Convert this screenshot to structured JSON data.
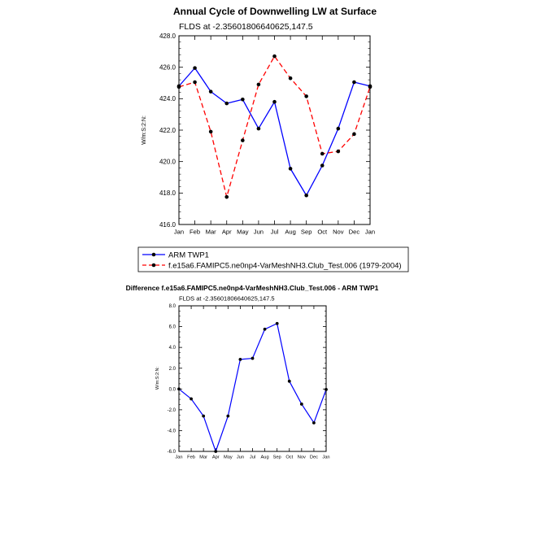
{
  "chart_data": [
    {
      "type": "line",
      "title": "Annual Cycle of Downwelling LW at Surface",
      "subtitle": "FLDS at -2.35601806640625,147.5",
      "ylabel": "W/m:S:2:N:",
      "xlabel": "",
      "categories": [
        "Jan",
        "Feb",
        "Mar",
        "Apr",
        "May",
        "Jun",
        "Jul",
        "Aug",
        "Sep",
        "Oct",
        "Nov",
        "Dec",
        "Jan"
      ],
      "ylim": [
        416.0,
        428.0
      ],
      "yticks": [
        "416.0",
        "418.0",
        "420.0",
        "422.0",
        "424.0",
        "426.0",
        "428.0"
      ],
      "grid": false,
      "legend_position": "bottom",
      "series": [
        {
          "name": "ARM TWP1",
          "color": "#0000ff",
          "dash": "solid",
          "values": [
            424.8,
            425.95,
            424.45,
            423.7,
            423.95,
            422.1,
            423.8,
            419.55,
            417.85,
            419.75,
            422.1,
            425.05,
            424.8
          ]
        },
        {
          "name": "f.e15a6.FAMIPC5.ne0np4-VarMeshNH3.Club_Test.006 (1979-2004)",
          "color": "#ff0000",
          "dash": "dashed",
          "values": [
            424.75,
            425.05,
            421.9,
            417.75,
            421.35,
            424.9,
            426.7,
            425.3,
            424.15,
            420.5,
            420.65,
            421.75,
            424.75
          ]
        }
      ]
    },
    {
      "type": "line",
      "title": "Difference f.e15a6.FAMIPC5.ne0np4-VarMeshNH3.Club_Test.006 - ARM TWP1",
      "subtitle": "FLDS at -2.35601806640625,147.5",
      "ylabel": "W/m:S:2:N:",
      "xlabel": "",
      "categories": [
        "Jan",
        "Feb",
        "Mar",
        "Apr",
        "May",
        "Jun",
        "Jul",
        "Aug",
        "Sep",
        "Oct",
        "Nov",
        "Dec",
        "Jan"
      ],
      "ylim": [
        -6.0,
        8.0
      ],
      "yticks": [
        "-6.0",
        "-4.0",
        "-2.0",
        "0.0",
        "2.0",
        "4.0",
        "6.0",
        "8.0"
      ],
      "grid": false,
      "series": [
        {
          "color": "#0000ff",
          "dash": "solid",
          "values": [
            0.0,
            -0.95,
            -2.6,
            -6.0,
            -2.6,
            2.85,
            2.95,
            5.75,
            6.3,
            0.75,
            -1.45,
            -3.25,
            -0.05
          ]
        }
      ]
    }
  ]
}
